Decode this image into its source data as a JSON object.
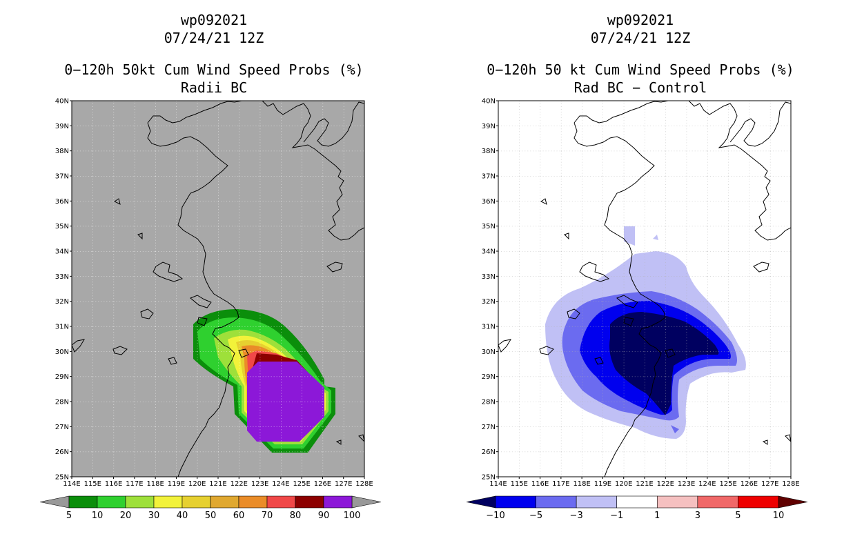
{
  "left_panel": {
    "storm_id": "wp092021",
    "datetime": "07/24/21 12Z",
    "title": "0−120h 50kt Cum Wind Speed Probs (%)",
    "subtitle": "Radii BC",
    "colorbar": {
      "labels": [
        "5",
        "10",
        "20",
        "30",
        "40",
        "50",
        "60",
        "70",
        "80",
        "90",
        "100"
      ],
      "colors": [
        "#999999",
        "#0b8e0b",
        "#2fd02f",
        "#9ee03a",
        "#f2f23a",
        "#e6d030",
        "#e0a830",
        "#ea8c28",
        "#f04848",
        "#8c0000",
        "#8c18d8",
        "#999999"
      ]
    }
  },
  "right_panel": {
    "storm_id": "wp092021",
    "datetime": "07/24/21 12Z",
    "title": "0−120h 50 kt Cum Wind Speed Probs (%)",
    "subtitle": "Rad BC − Control",
    "colorbar": {
      "labels": [
        "−10",
        "−5",
        "−3",
        "−1",
        "1",
        "3",
        "5",
        "10"
      ],
      "colors": [
        "#000060",
        "#0000ee",
        "#6b6bf0",
        "#c0c0f5",
        "#ffffff",
        "#f5c0c0",
        "#f06868",
        "#ee0000",
        "#600000"
      ]
    }
  },
  "axes": {
    "lat_labels": [
      "40N",
      "39N",
      "38N",
      "37N",
      "36N",
      "35N",
      "34N",
      "33N",
      "32N",
      "31N",
      "30N",
      "29N",
      "28N",
      "27N",
      "26N",
      "25N"
    ],
    "lon_labels": [
      "114E",
      "115E",
      "116E",
      "117E",
      "118E",
      "119E",
      "120E",
      "121E",
      "122E",
      "123E",
      "124E",
      "125E",
      "126E",
      "127E",
      "128E"
    ],
    "lat_range": [
      25,
      40
    ],
    "lon_range": [
      114,
      128
    ]
  },
  "colors": {
    "map_background_left": "#a8a8a8",
    "map_background_right": "#ffffff",
    "coastline": "#000000"
  }
}
